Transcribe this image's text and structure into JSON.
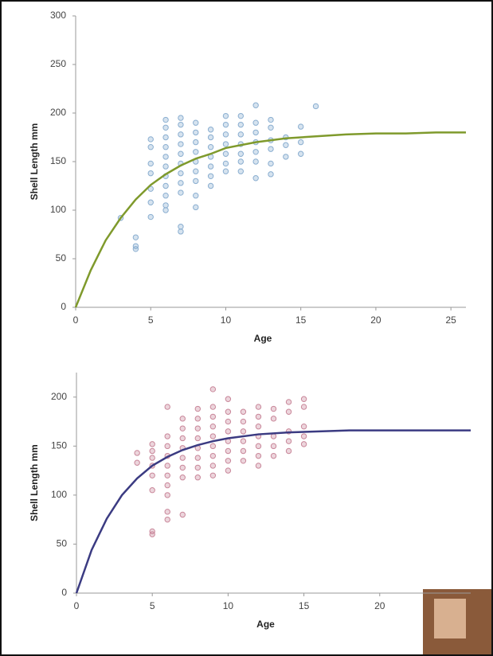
{
  "chart_data": [
    {
      "type": "scatter",
      "x_label": "Age",
      "y_label": "Shell Length mm",
      "xlim": [
        0,
        26
      ],
      "xticks": [
        0,
        5,
        10,
        15,
        20,
        25
      ],
      "ylim": [
        0,
        300
      ],
      "yticks": [
        0,
        50,
        100,
        150,
        200,
        250,
        300
      ],
      "grid": false,
      "series": [
        {
          "style": "points",
          "color": "#8aaed0",
          "x": [
            3,
            4,
            4,
            4,
            5,
            5,
            5,
            5,
            5,
            5,
            5,
            6,
            6,
            6,
            6,
            6,
            6,
            6,
            6,
            6,
            6,
            6,
            7,
            7,
            7,
            7,
            7,
            7,
            7,
            7,
            7,
            7,
            7,
            8,
            8,
            8,
            8,
            8,
            8,
            8,
            8,
            8,
            9,
            9,
            9,
            9,
            9,
            9,
            9,
            10,
            10,
            10,
            10,
            10,
            10,
            10,
            11,
            11,
            11,
            11,
            11,
            11,
            11,
            12,
            12,
            12,
            12,
            12,
            12,
            12,
            13,
            13,
            13,
            13,
            13,
            13,
            14,
            14,
            14,
            15,
            15,
            15,
            16
          ],
          "values": [
            92,
            72,
            63,
            60,
            173,
            165,
            148,
            138,
            122,
            108,
            93,
            193,
            185,
            175,
            165,
            155,
            145,
            135,
            125,
            115,
            105,
            100,
            195,
            188,
            178,
            168,
            158,
            148,
            138,
            128,
            118,
            83,
            78,
            190,
            180,
            170,
            160,
            150,
            140,
            130,
            115,
            103,
            183,
            175,
            165,
            155,
            145,
            135,
            125,
            197,
            188,
            178,
            168,
            158,
            148,
            140,
            197,
            188,
            178,
            168,
            158,
            150,
            140,
            208,
            190,
            180,
            170,
            160,
            150,
            133,
            193,
            185,
            172,
            163,
            148,
            137,
            175,
            167,
            155,
            186,
            170,
            158,
            207
          ]
        },
        {
          "style": "line",
          "color": "#7f9a2c",
          "x": [
            0,
            1,
            2,
            3,
            4,
            5,
            6,
            7,
            8,
            9,
            10,
            12,
            14,
            16,
            18,
            20,
            22,
            24,
            26
          ],
          "values": [
            0,
            38,
            69,
            92,
            111,
            126,
            137,
            146,
            153,
            158,
            164,
            170,
            174,
            176,
            178,
            179,
            179,
            180,
            180
          ]
        }
      ]
    },
    {
      "type": "scatter",
      "x_label": "Age",
      "y_label": "Shell Length mm",
      "xlim": [
        0,
        26
      ],
      "xticks": [
        0,
        5,
        10,
        15,
        20
      ],
      "ylim": [
        0,
        225
      ],
      "yticks": [
        0,
        50,
        100,
        150,
        200
      ],
      "grid": false,
      "series": [
        {
          "style": "points",
          "color": "#c9879a",
          "x": [
            4,
            4,
            5,
            5,
            5,
            5,
            5,
            5,
            5,
            5,
            6,
            6,
            6,
            6,
            6,
            6,
            6,
            6,
            6,
            6,
            7,
            7,
            7,
            7,
            7,
            7,
            7,
            7,
            8,
            8,
            8,
            8,
            8,
            8,
            8,
            8,
            9,
            9,
            9,
            9,
            9,
            9,
            9,
            9,
            9,
            10,
            10,
            10,
            10,
            10,
            10,
            10,
            10,
            11,
            11,
            11,
            11,
            11,
            11,
            12,
            12,
            12,
            12,
            12,
            12,
            12,
            13,
            13,
            13,
            13,
            13,
            14,
            14,
            14,
            14,
            14,
            15,
            15,
            15,
            15,
            15
          ],
          "values": [
            143,
            133,
            152,
            145,
            138,
            130,
            120,
            105,
            63,
            60,
            190,
            160,
            150,
            140,
            130,
            120,
            110,
            100,
            83,
            75,
            178,
            168,
            158,
            148,
            138,
            128,
            118,
            80,
            188,
            178,
            168,
            158,
            148,
            138,
            128,
            118,
            208,
            190,
            180,
            170,
            160,
            150,
            140,
            130,
            120,
            198,
            185,
            175,
            165,
            155,
            145,
            135,
            125,
            185,
            175,
            165,
            155,
            145,
            135,
            190,
            180,
            170,
            160,
            150,
            140,
            130,
            188,
            178,
            160,
            150,
            140,
            195,
            185,
            165,
            155,
            145,
            198,
            190,
            170,
            160,
            152
          ]
        },
        {
          "style": "line",
          "color": "#3b3b82",
          "x": [
            0,
            1,
            2,
            3,
            4,
            5,
            6,
            7,
            8,
            9,
            10,
            12,
            14,
            16,
            18,
            20,
            22,
            24,
            26
          ],
          "values": [
            0,
            44,
            76,
            100,
            117,
            130,
            139,
            146,
            151,
            155,
            158,
            162,
            164,
            165,
            166,
            166,
            166,
            166,
            166
          ]
        }
      ]
    }
  ]
}
